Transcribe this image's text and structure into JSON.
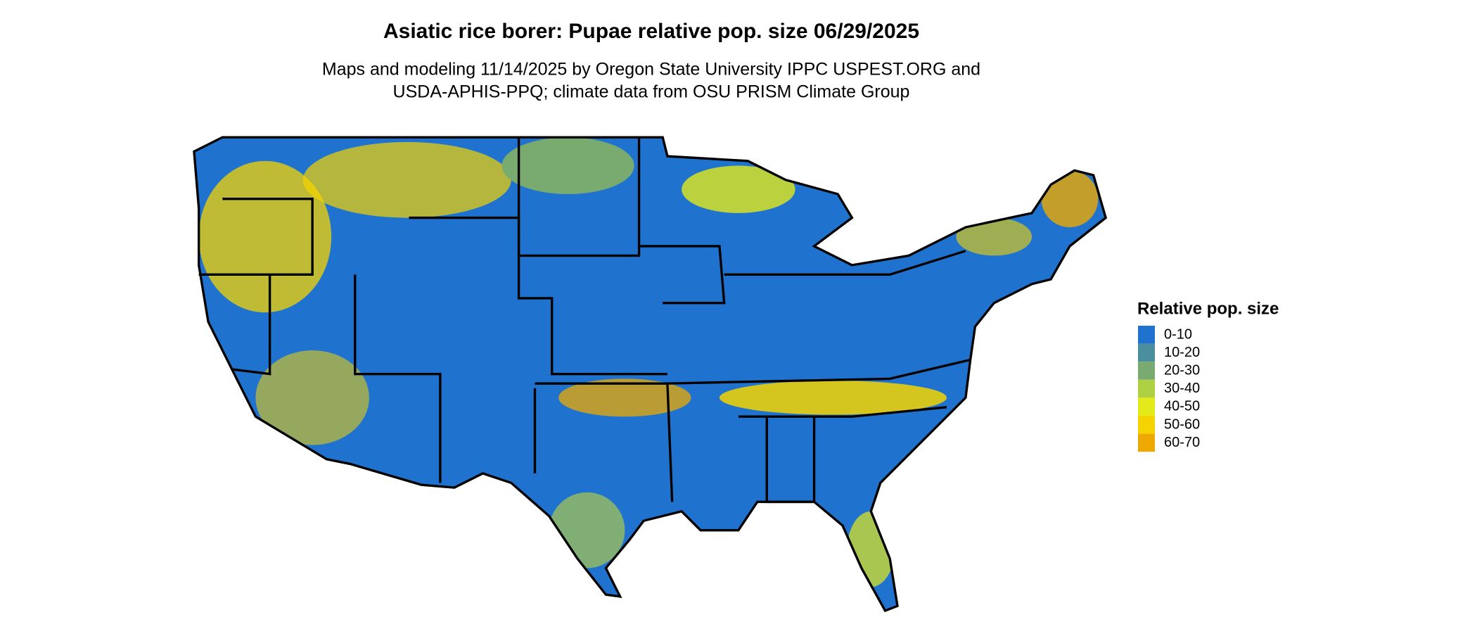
{
  "title": "Asiatic rice borer: Pupae relative pop. size 06/29/2025",
  "subtitle": [
    "Maps and modeling 11/14/2025 by Oregon State University IPPC USPEST.ORG and",
    "USDA-APHIS-PPQ; climate data from OSU PRISM Climate Group"
  ],
  "legend": {
    "title": "Relative pop. size",
    "items": [
      {
        "label": "0-10",
        "color": "#1f73cf"
      },
      {
        "label": "10-20",
        "color": "#4b8e9e"
      },
      {
        "label": "20-30",
        "color": "#79ab71"
      },
      {
        "label": "30-40",
        "color": "#aed043"
      },
      {
        "label": "40-50",
        "color": "#e2ea19"
      },
      {
        "label": "50-60",
        "color": "#f5d300"
      },
      {
        "label": "60-70",
        "color": "#eea900"
      }
    ]
  }
}
